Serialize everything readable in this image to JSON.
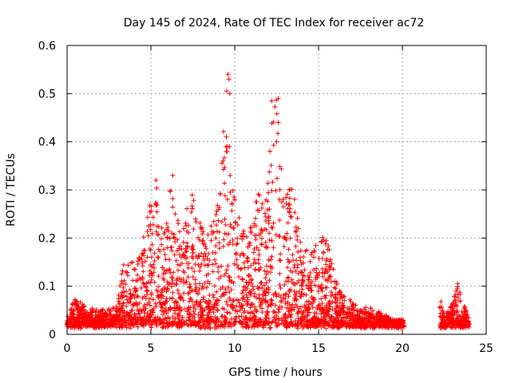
{
  "chart_data": {
    "type": "scatter",
    "title": "Day 145 of 2024, Rate Of TEC Index for receiver ac72",
    "xlabel": "GPS time / hours",
    "ylabel": "ROTI / TECUs",
    "xlim": [
      0,
      25
    ],
    "ylim": [
      0,
      0.6
    ],
    "xticks": [
      0,
      5,
      10,
      15,
      20,
      25
    ],
    "xtick_labels": [
      "0",
      "5",
      "10",
      "15",
      "20",
      "25"
    ],
    "yticks": [
      0,
      0.1,
      0.2,
      0.3,
      0.4,
      0.5,
      0.6
    ],
    "ytick_labels": [
      "0",
      "0.1",
      "0.2",
      "0.3",
      "0.4",
      "0.5",
      "0.6"
    ],
    "grid": true,
    "marker": "+",
    "marker_color": "#ff0000",
    "series": [
      {
        "name": "ROTI",
        "envelope": {
          "description": "approximate upper envelope of ROTI values vs GPS hour (data mostly dense from baseline up to this level)",
          "x": [
            0.0,
            0.5,
            1.0,
            2.0,
            3.0,
            3.3,
            4.0,
            4.5,
            5.0,
            5.3,
            5.8,
            6.3,
            6.8,
            7.2,
            7.6,
            8.2,
            8.8,
            9.2,
            9.5,
            9.8,
            10.2,
            10.8,
            11.3,
            11.8,
            12.2,
            12.6,
            13.0,
            13.5,
            14.0,
            14.5,
            15.0,
            15.5,
            16.0,
            16.5,
            17.0,
            17.5,
            18.0,
            18.5,
            19.0,
            19.5,
            20.0,
            22.2,
            22.6,
            23.0,
            23.3,
            23.5,
            24.0
          ],
          "y": [
            0.04,
            0.08,
            0.06,
            0.05,
            0.06,
            0.15,
            0.15,
            0.2,
            0.28,
            0.32,
            0.22,
            0.33,
            0.2,
            0.28,
            0.3,
            0.2,
            0.25,
            0.35,
            0.54,
            0.32,
            0.25,
            0.2,
            0.32,
            0.26,
            0.48,
            0.49,
            0.3,
            0.31,
            0.2,
            0.16,
            0.21,
            0.2,
            0.12,
            0.08,
            0.07,
            0.05,
            0.06,
            0.05,
            0.04,
            0.03,
            0.03,
            0.07,
            0.04,
            0.07,
            0.1,
            0.08,
            0.03
          ]
        },
        "baseline": 0.02,
        "data_gaps_hours": [
          [
            20.1,
            22.2
          ]
        ],
        "notable_points": [
          {
            "x": 9.6,
            "y": 0.54
          },
          {
            "x": 9.65,
            "y": 0.53
          },
          {
            "x": 9.7,
            "y": 0.5
          },
          {
            "x": 12.2,
            "y": 0.485
          },
          {
            "x": 12.6,
            "y": 0.49
          },
          {
            "x": 12.6,
            "y": 0.44
          },
          {
            "x": 12.5,
            "y": 0.4
          },
          {
            "x": 9.5,
            "y": 0.41
          },
          {
            "x": 9.3,
            "y": 0.36
          },
          {
            "x": 6.3,
            "y": 0.33
          },
          {
            "x": 5.3,
            "y": 0.32
          },
          {
            "x": 23.3,
            "y": 0.105
          },
          {
            "x": 23.2,
            "y": 0.09
          },
          {
            "x": 22.3,
            "y": 0.068
          },
          {
            "x": 23.7,
            "y": 0.058
          }
        ]
      }
    ]
  }
}
